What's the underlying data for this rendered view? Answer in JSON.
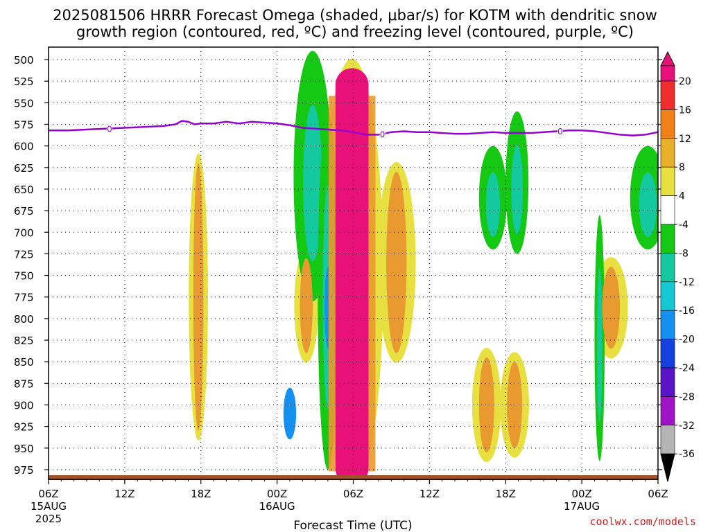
{
  "title_line1": "2025081506 HRRR Forecast Omega (shaded, μbar/s) for KOTM with dendritic snow",
  "title_line2": "growth region (contoured, red, ºC) and freezing level (contoured, purple, ºC)",
  "credit": "coolwx.com/models",
  "colors": {
    "freezing_level": "#9400d3",
    "terrain": "#a0522d",
    "grid": "#888888",
    "strong_positive": "#e8117a"
  },
  "chart_data": {
    "type": "heatmap",
    "title": "2025081506 HRRR Forecast Omega (shaded, μbar/s) for KOTM with dendritic snow growth region (contoured, red, ºC) and freezing level (contoured, purple, ºC)",
    "xlabel": "Forecast Time (UTC)",
    "ylabel": "",
    "x_ticks": [
      {
        "hour": 0,
        "label": "06Z",
        "sub": [
          "15AUG",
          "2025"
        ]
      },
      {
        "hour": 6,
        "label": "12Z",
        "sub": []
      },
      {
        "hour": 12,
        "label": "18Z",
        "sub": []
      },
      {
        "hour": 18,
        "label": "00Z",
        "sub": [
          "16AUG"
        ]
      },
      {
        "hour": 24,
        "label": "06Z",
        "sub": []
      },
      {
        "hour": 30,
        "label": "12Z",
        "sub": []
      },
      {
        "hour": 36,
        "label": "18Z",
        "sub": []
      },
      {
        "hour": 42,
        "label": "00Z",
        "sub": [
          "17AUG"
        ]
      },
      {
        "hour": 48,
        "label": "06Z",
        "sub": []
      }
    ],
    "xlim": [
      0,
      48
    ],
    "y_ticks": [
      500,
      525,
      550,
      575,
      600,
      625,
      650,
      675,
      700,
      725,
      750,
      775,
      800,
      825,
      850,
      875,
      900,
      925,
      950,
      975
    ],
    "ylim": [
      490,
      993
    ],
    "grid": true,
    "colorbar": {
      "labels": [
        "20",
        "16",
        "12",
        "8",
        "4",
        "-4",
        "-8",
        "-12",
        "-16",
        "-20",
        "-24",
        "-28",
        "-32",
        "-36"
      ],
      "colors": [
        "#e8117a",
        "#f02c2c",
        "#f08018",
        "#e8b028",
        "#e8e040",
        "#ffffff",
        "#14c814",
        "#14c8a0",
        "#14c8d4",
        "#1490f0",
        "#1440e0",
        "#5a14c8",
        "#a014c8",
        "#b4b4b4",
        "#000000"
      ],
      "placement": "right"
    },
    "freezing_level": {
      "label": "0",
      "points": [
        [
          0,
          582
        ],
        [
          1.5,
          582
        ],
        [
          3,
          581
        ],
        [
          4.5,
          580
        ],
        [
          6,
          579
        ],
        [
          7.5,
          578
        ],
        [
          9,
          577
        ],
        [
          10,
          575
        ],
        [
          10.5,
          571
        ],
        [
          11,
          572
        ],
        [
          11.5,
          575
        ],
        [
          12,
          574
        ],
        [
          13,
          574
        ],
        [
          14,
          572
        ],
        [
          15,
          574
        ],
        [
          16,
          572
        ],
        [
          17,
          573
        ],
        [
          18,
          574
        ],
        [
          19,
          576
        ],
        [
          20,
          579
        ],
        [
          21,
          580
        ],
        [
          22,
          581
        ],
        [
          23,
          582
        ],
        [
          24,
          584
        ],
        [
          25,
          587
        ],
        [
          26,
          587
        ],
        [
          27,
          584
        ],
        [
          28,
          583
        ],
        [
          29,
          584
        ],
        [
          30,
          584
        ],
        [
          31,
          585
        ],
        [
          32,
          586
        ],
        [
          33,
          586
        ],
        [
          34,
          585
        ],
        [
          35,
          584
        ],
        [
          36,
          585
        ],
        [
          37,
          585
        ],
        [
          38,
          585
        ],
        [
          39,
          584
        ],
        [
          40,
          583
        ],
        [
          41,
          582
        ],
        [
          42,
          582
        ],
        [
          43,
          583
        ],
        [
          44,
          585
        ],
        [
          45,
          587
        ],
        [
          46,
          588
        ],
        [
          47,
          587
        ],
        [
          48,
          584
        ]
      ],
      "label_hours": [
        4.8,
        26.3,
        40.3
      ]
    },
    "series": [
      {
        "name": "",
        "band": "pink",
        "cx": 23.9,
        "p_top": 510,
        "p_bot": 993,
        "half_width": 1.3
      },
      {
        "name": "",
        "band": "orange",
        "cx": 11.8,
        "p_top": 620,
        "p_bot": 930,
        "half_width": 0.4
      },
      {
        "name": "",
        "band": "orange",
        "cx": 20.3,
        "p_top": 730,
        "p_bot": 840,
        "half_width": 0.5
      },
      {
        "name": "",
        "band": "orange",
        "cx": 27.4,
        "p_top": 630,
        "p_bot": 840,
        "half_width": 0.8
      },
      {
        "name": "",
        "band": "orange",
        "cx": 34.5,
        "p_top": 845,
        "p_bot": 955,
        "half_width": 0.6
      },
      {
        "name": "",
        "band": "orange",
        "cx": 36.7,
        "p_top": 850,
        "p_bot": 950,
        "half_width": 0.6
      },
      {
        "name": "",
        "band": "orange",
        "cx": 44.3,
        "p_top": 740,
        "p_bot": 835,
        "half_width": 0.7
      },
      {
        "name": "",
        "band": "green",
        "cx": 20.8,
        "p_top": 490,
        "p_bot": 780,
        "half_width": 1.5
      },
      {
        "name": "",
        "band": "green",
        "cx": 22.0,
        "p_top": 560,
        "p_bot": 975,
        "half_width": 0.8
      },
      {
        "name": "",
        "band": "green",
        "cx": 35.0,
        "p_top": 600,
        "p_bot": 720,
        "half_width": 1.1
      },
      {
        "name": "",
        "band": "green",
        "cx": 36.9,
        "p_top": 560,
        "p_bot": 725,
        "half_width": 0.9
      },
      {
        "name": "",
        "band": "green",
        "cx": 43.4,
        "p_top": 680,
        "p_bot": 965,
        "half_width": 0.4
      },
      {
        "name": "",
        "band": "green",
        "cx": 47.2,
        "p_top": 600,
        "p_bot": 720,
        "half_width": 1.4
      },
      {
        "name": "",
        "band": "blue",
        "cx": 22.0,
        "p_top": 740,
        "p_bot": 835,
        "half_width": 0.25
      },
      {
        "name": "",
        "band": "blue",
        "cx": 19.0,
        "p_top": 880,
        "p_bot": 940,
        "half_width": 0.5
      }
    ]
  }
}
